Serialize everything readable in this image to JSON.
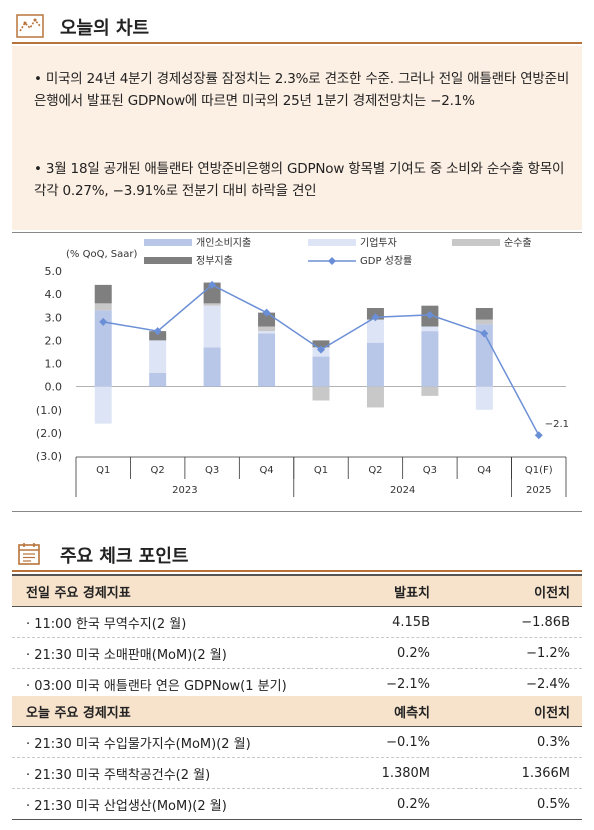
{
  "section1": {
    "title": "오늘의 차트",
    "icon": "trend-chart-icon",
    "bullet1": "• 미국의 24년 4분기 경제성장률 잠정치는 2.3%로 견조한 수준. 그러나 전일 애틀랜타 연방준비은행에서 발표된 GDPNow에 따르면 미국의 25년 1분기 경제전망치는 −2.1%",
    "bullet2": "• 3월 18일 공개된 애틀랜타 연방준비은행의 GDPNow 항목별 기여도 중 소비와 순수출 항목이 각각 0.27%, −3.91%로 전분기 대비 하락을 견인"
  },
  "colors": {
    "consumption": "#b8c6e8",
    "investment": "#dde4f5",
    "netexports": "#c8c8c8",
    "government": "#7f7f7f",
    "gdp": "#6b8fd6",
    "accent": "#b8733a",
    "header_bg": "#f7e2cc",
    "summary_bg": "#fcefe3"
  },
  "chart_data": {
    "type": "bar",
    "unit_label": "(% QoQ, Saar)",
    "categories": [
      "Q1",
      "Q2",
      "Q3",
      "Q4",
      "Q1",
      "Q2",
      "Q3",
      "Q4",
      "Q1(F)"
    ],
    "year_groups": [
      {
        "label": "2023",
        "span": 4
      },
      {
        "label": "2024",
        "span": 4
      },
      {
        "label": "2025",
        "span": 1
      }
    ],
    "ylim": [
      -3.0,
      5.0
    ],
    "yticks": [
      5.0,
      4.0,
      3.0,
      2.0,
      1.0,
      0.0,
      -1.0,
      -2.0,
      -3.0
    ],
    "ytick_labels": [
      "5.0",
      "4.0",
      "3.0",
      "2.0",
      "1.0",
      "0.0",
      "(1.0)",
      "(2.0)",
      "(3.0)"
    ],
    "legend": [
      "개인소비지출",
      "기업투자",
      "순수출",
      "정부지출",
      "GDP 성장률"
    ],
    "series": [
      {
        "name": "개인소비지출",
        "values": [
          3.3,
          0.6,
          1.7,
          2.3,
          1.3,
          1.9,
          2.4,
          2.7,
          null
        ]
      },
      {
        "name": "기업투자",
        "values": [
          -1.6,
          1.4,
          1.8,
          0.1,
          0.4,
          1.0,
          0.2,
          -1.0,
          null
        ]
      },
      {
        "name": "순수출",
        "values": [
          0.3,
          0.0,
          0.1,
          0.2,
          -0.6,
          -0.9,
          -0.4,
          0.2,
          null
        ]
      },
      {
        "name": "정부지출",
        "values": [
          0.8,
          0.4,
          0.9,
          0.6,
          0.3,
          0.5,
          0.9,
          0.5,
          null
        ]
      },
      {
        "name": "GDP 성장률",
        "values": [
          2.8,
          2.4,
          4.4,
          3.2,
          1.6,
          3.0,
          3.1,
          2.3,
          -2.1
        ]
      }
    ],
    "annotation": "−2.1"
  },
  "section2": {
    "title": "주요 체크 포인트",
    "icon": "calendar-icon"
  },
  "table_prev": {
    "headers": [
      "전일 주요 경제지표",
      "발표치",
      "이전치"
    ],
    "rows": [
      [
        "· 11:00 한국 무역수지(2 월)",
        "4.15B",
        "−1.86B"
      ],
      [
        "· 21:30 미국 소매판매(MoM)(2 월)",
        "0.2%",
        "−1.2%"
      ],
      [
        "· 03:00 미국 애틀랜타 연은 GDPNow(1 분기)",
        "−2.1%",
        "−2.4%"
      ]
    ]
  },
  "table_today": {
    "headers": [
      "오늘 주요 경제지표",
      "예측치",
      "이전치"
    ],
    "rows": [
      [
        "· 21:30 미국 수입물가지수(MoM)(2 월)",
        "−0.1%",
        "0.3%"
      ],
      [
        "· 21:30 미국 주택착공건수(2 월)",
        "1.380M",
        "1.366M"
      ],
      [
        "· 21:30 미국 산업생산(MoM)(2 월)",
        "0.2%",
        "0.5%"
      ]
    ]
  }
}
